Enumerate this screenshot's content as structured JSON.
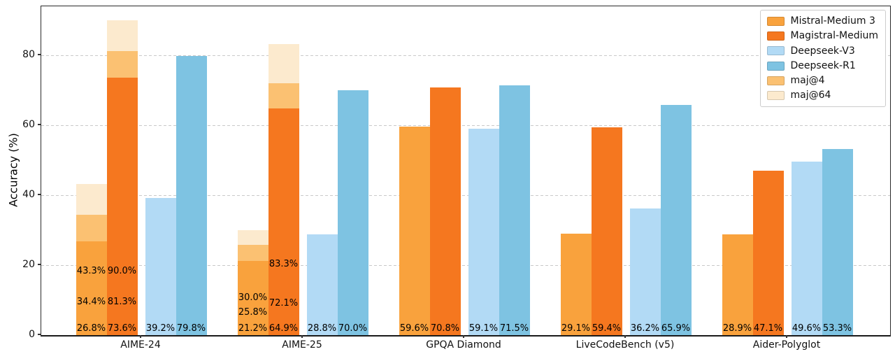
{
  "figure": {
    "background": "#ffffff",
    "frame_color": "#2a2a2a",
    "grid_color": "#c9c9c9",
    "text_color": "#000000"
  },
  "chart_data": {
    "type": "bar",
    "title": "",
    "xlabel": "",
    "ylabel": "Accuracy (%)",
    "ylim": [
      0,
      94
    ],
    "yticks": [
      0,
      20,
      40,
      60,
      80
    ],
    "grid": "horizontal-dashed",
    "legend_position": "upper-right",
    "value_suffix": "%",
    "categories": [
      "AIME-24",
      "AIME-25",
      "GPQA Diamond",
      "LiveCodeBench (v5)",
      "Aider-Polyglot"
    ],
    "series": [
      {
        "name": "Mistral-Medium 3",
        "color": "#F9A23D",
        "values": [
          26.8,
          21.2,
          59.6,
          29.1,
          28.9
        ],
        "maj4": [
          34.4,
          25.8,
          null,
          null,
          null
        ],
        "maj64": [
          43.3,
          30.0,
          null,
          null,
          null
        ]
      },
      {
        "name": "Magistral-Medium",
        "color": "#F5771F",
        "values": [
          73.6,
          64.9,
          70.8,
          59.4,
          47.1
        ],
        "maj4": [
          81.3,
          72.1,
          null,
          null,
          null
        ],
        "maj64": [
          90.0,
          83.3,
          null,
          null,
          null
        ]
      },
      {
        "name": "Deepseek-V3",
        "color": "#B2DAF5",
        "values": [
          39.2,
          28.8,
          59.1,
          36.2,
          49.6
        ]
      },
      {
        "name": "Deepseek-R1",
        "color": "#7EC3E2",
        "values": [
          79.8,
          70.0,
          71.5,
          65.9,
          53.3
        ]
      }
    ],
    "overlays": [
      {
        "name": "maj@4",
        "key": "maj4",
        "color": "#FBC172"
      },
      {
        "name": "maj@64",
        "key": "maj64",
        "color": "#FCEACE"
      }
    ],
    "legend_order": [
      "Mistral-Medium 3",
      "Magistral-Medium",
      "Deepseek-V3",
      "Deepseek-R1",
      "maj@4",
      "maj@64"
    ]
  }
}
